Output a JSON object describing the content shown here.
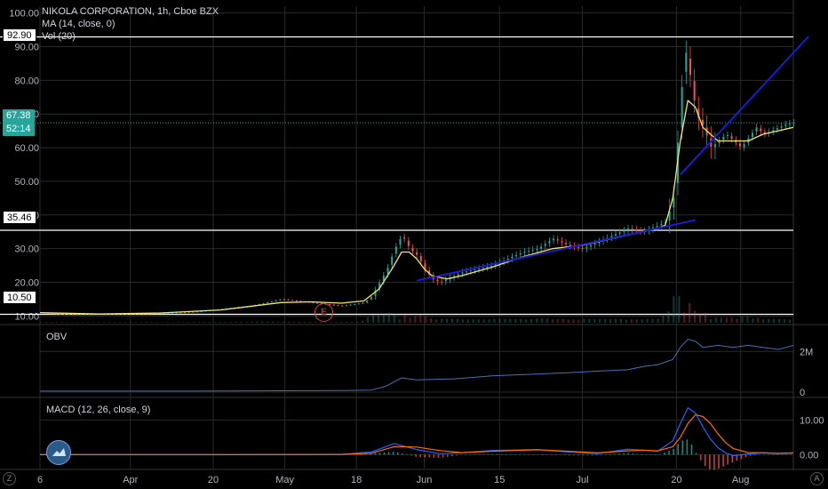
{
  "legend": {
    "symbol": "NIKOLA CORPORATION, 1h, Cboe BZX",
    "ma": "MA (14, close, 0)",
    "vol": "Vol (20)",
    "obv": "OBV",
    "macd": "MACD (12, 26, close, 9)"
  },
  "price_tags": {
    "top_level": "92.90",
    "current_price": "67.38",
    "countdown": "52:14",
    "mid_level": "35.46",
    "low_level": "10.50"
  },
  "earnings_marker": "E",
  "corners": {
    "left": "Z",
    "right": "A"
  },
  "colors": {
    "background": "#000000",
    "grid": "#2a2a2a",
    "up": "#26a69a",
    "down": "#ef5350",
    "ma": "#f5e663",
    "trendline": "#1c1cd0",
    "obv": "#4a6fb0",
    "macd": "#2962ff",
    "signal": "#ff6d00",
    "level": "#ffffff"
  },
  "chart_data": {
    "type": "line",
    "price_axis": {
      "ticks": [
        "100.00",
        "90.00",
        "80.00",
        "70.00",
        "60.00",
        "50.00",
        "40.00",
        "30.00",
        "20.00",
        "10.00"
      ],
      "ylim": [
        8,
        102
      ]
    },
    "obv_axis": {
      "ticks": [
        "2M",
        "0"
      ]
    },
    "macd_axis": {
      "ticks": [
        "10.00",
        "0.00"
      ]
    },
    "time_axis": {
      "ticks": [
        "6",
        "Apr",
        "20",
        "May",
        "18",
        "Jun",
        "15",
        "Jul",
        "20",
        "Aug"
      ]
    },
    "horizontal_levels": [
      92.9,
      35.46,
      10.5
    ],
    "current_price": 67.38,
    "price_series": {
      "name": "NKLA",
      "x": [
        0,
        4,
        8,
        12,
        16,
        20,
        24,
        28,
        32,
        36,
        40,
        43,
        44,
        45,
        46,
        47,
        48,
        49,
        50,
        51,
        52,
        53,
        54,
        55,
        56,
        58,
        60,
        62,
        64,
        66,
        68,
        70,
        72,
        74,
        76,
        78,
        80,
        82,
        83,
        84,
        84.5,
        85,
        85.5,
        86,
        86.5,
        87,
        88,
        89,
        90,
        91,
        92,
        93,
        94,
        95,
        96,
        97,
        98,
        99,
        100
      ],
      "y": [
        11,
        10.5,
        10.6,
        10.7,
        10.9,
        11.2,
        12,
        13,
        15,
        14,
        13,
        14,
        16,
        20,
        24,
        30,
        34,
        30,
        28,
        24,
        21,
        20,
        21,
        22,
        23,
        24,
        25,
        27,
        29,
        30,
        33,
        31,
        30,
        32,
        34,
        36,
        35,
        37,
        38,
        45,
        60,
        75,
        90,
        84,
        78,
        70,
        66,
        60,
        62,
        64,
        62,
        60,
        63,
        66,
        64,
        65,
        66,
        67,
        67.4
      ]
    },
    "ma_series": {
      "name": "MA (14, close, 0)",
      "x": [
        0,
        8,
        16,
        24,
        32,
        36,
        40,
        43,
        45,
        47,
        48,
        49,
        50,
        51,
        52,
        54,
        56,
        60,
        64,
        68,
        72,
        76,
        80,
        82,
        83,
        84,
        85,
        86,
        87,
        88,
        89,
        90,
        92,
        94,
        96,
        98,
        100
      ],
      "y": [
        11,
        10.6,
        10.9,
        11.8,
        14,
        14.2,
        13.8,
        14.5,
        18,
        25,
        29,
        29,
        27,
        24,
        22,
        21,
        22,
        24.5,
        27.5,
        30,
        31,
        33,
        35,
        36,
        37,
        45,
        62,
        74,
        72,
        66,
        64,
        62,
        62,
        62,
        64,
        65,
        66
      ]
    },
    "trendlines": [
      {
        "x": [
          50,
          87
        ],
        "y": [
          20.5,
          38.5
        ]
      },
      {
        "x": [
          85,
          102
        ],
        "y": [
          52,
          93
        ]
      }
    ],
    "obv_series": {
      "name": "OBV",
      "x": [
        0,
        20,
        40,
        44,
        46,
        48,
        50,
        55,
        60,
        70,
        75,
        78,
        80,
        82,
        84,
        85,
        86,
        87,
        88,
        90,
        92,
        94,
        96,
        98,
        100
      ],
      "y": [
        0.05,
        0.05,
        0.08,
        0.1,
        0.3,
        0.7,
        0.6,
        0.65,
        0.8,
        0.95,
        1.05,
        1.1,
        1.25,
        1.35,
        1.6,
        2.2,
        2.6,
        2.5,
        2.2,
        2.3,
        2.2,
        2.3,
        2.2,
        2.1,
        2.3
      ]
    },
    "macd_series": {
      "name": "MACD",
      "x": [
        0,
        20,
        40,
        44,
        47,
        50,
        53,
        56,
        60,
        66,
        70,
        74,
        78,
        80,
        82,
        84,
        85,
        86,
        87,
        88,
        89,
        90,
        91,
        92,
        94,
        96,
        98,
        100
      ],
      "y": [
        0,
        0,
        0.1,
        0.8,
        3.2,
        1.5,
        0.3,
        0.6,
        1.2,
        1.5,
        0.8,
        0.3,
        1.6,
        1.3,
        1.0,
        4,
        9,
        13.5,
        12,
        8,
        4.5,
        2,
        0.5,
        -0.3,
        0.2,
        0.6,
        0.3,
        0.5
      ]
    },
    "signal_series": {
      "name": "Signal",
      "x": [
        0,
        20,
        40,
        44,
        47,
        50,
        53,
        56,
        60,
        66,
        70,
        74,
        78,
        80,
        82,
        84,
        85,
        86,
        87,
        88,
        89,
        90,
        91,
        92,
        94,
        96,
        98,
        100
      ],
      "y": [
        0,
        0,
        0.05,
        0.4,
        2.3,
        2.2,
        1.2,
        0.6,
        1.0,
        1.4,
        1.0,
        0.5,
        1.1,
        1.3,
        1.1,
        2.3,
        5,
        9,
        11.5,
        11,
        9,
        6,
        3.5,
        1.8,
        0.6,
        0.5,
        0.4,
        0.5
      ]
    },
    "macd_ylim": [
      -4,
      16
    ]
  }
}
